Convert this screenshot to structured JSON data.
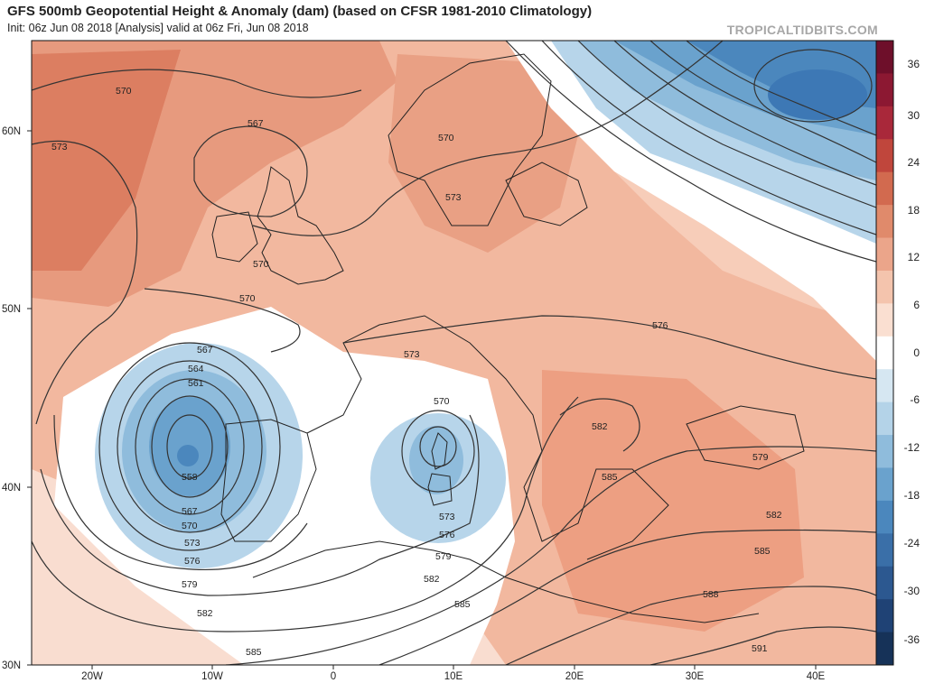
{
  "header": {
    "title": "GFS 500mb Geopotential Height & Anomaly (dam) (based on CFSR 1981-2010 Climatology)",
    "subtitle": "Init: 06z Jun 08 2018   [Analysis]   valid at 06z Fri, Jun 08 2018",
    "brand": "TROPICALTIDBITS.COM"
  },
  "axes": {
    "lat_labels": [
      "60N",
      "50N",
      "40N",
      "30N"
    ],
    "lon_labels": [
      "20W",
      "10W",
      "0",
      "10E",
      "20E",
      "30E",
      "40E"
    ]
  },
  "colorbar": {
    "labels": [
      "36",
      "30",
      "24",
      "18",
      "12",
      "6",
      "0",
      "-6",
      "-12",
      "-18",
      "-24",
      "-30",
      "-36"
    ],
    "colors": [
      "#6e0f2a",
      "#8c1832",
      "#a9283a",
      "#c0463c",
      "#d26a4f",
      "#e08a6b",
      "#eba58a",
      "#f4c4ad",
      "#fadfd1",
      "#ffffff",
      "#d6e7f2",
      "#b4d3e8",
      "#8fbcdc",
      "#6aa2cd",
      "#4b87bd",
      "#3a6fa8",
      "#2c5890",
      "#1f4275",
      "#163258"
    ]
  },
  "contours": {
    "height_labels": [
      "570",
      "567",
      "573",
      "570",
      "570",
      "570",
      "573",
      "567",
      "564",
      "561",
      "558",
      "567",
      "570",
      "573",
      "576",
      "579",
      "582",
      "585",
      "573",
      "570",
      "573",
      "576",
      "579",
      "582",
      "585",
      "576",
      "582",
      "585",
      "579",
      "582",
      "585",
      "588",
      "591"
    ]
  },
  "colors": {
    "warm_strong": "#d46a52",
    "warm_mid": "#e79a7e",
    "warm_light": "#f6c9b4",
    "cool_light": "#b7d5ea",
    "cool_mid": "#6fa7d1",
    "cool_strong": "#3d78b5"
  }
}
